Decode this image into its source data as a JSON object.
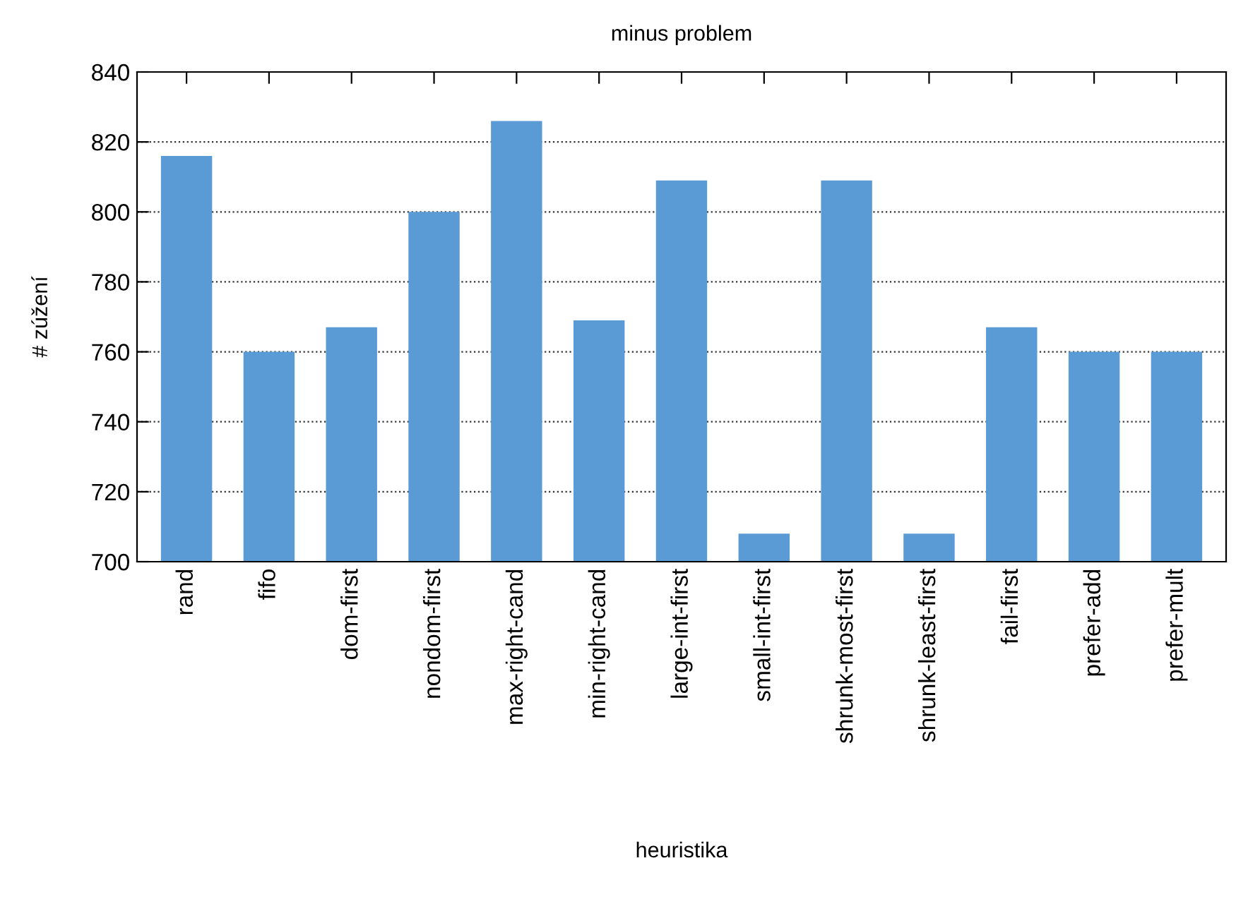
{
  "chart_data": {
    "type": "bar",
    "title": "minus problem",
    "xlabel": "heuristika",
    "ylabel": "# zúžení",
    "categories": [
      "rand",
      "fifo",
      "dom-first",
      "nondom-first",
      "max-right-cand",
      "min-right-cand",
      "large-int-first",
      "small-int-first",
      "shrunk-most-first",
      "shrunk-least-first",
      "fail-first",
      "prefer-add",
      "prefer-mult"
    ],
    "values": [
      816,
      760,
      767,
      800,
      826,
      769,
      809,
      708,
      809,
      708,
      767,
      760,
      760
    ],
    "color": "#5b9bd5",
    "ylim": [
      700,
      840
    ],
    "yticks": [
      700,
      720,
      740,
      760,
      780,
      800,
      820,
      840
    ],
    "grid": "y",
    "legend": false
  }
}
